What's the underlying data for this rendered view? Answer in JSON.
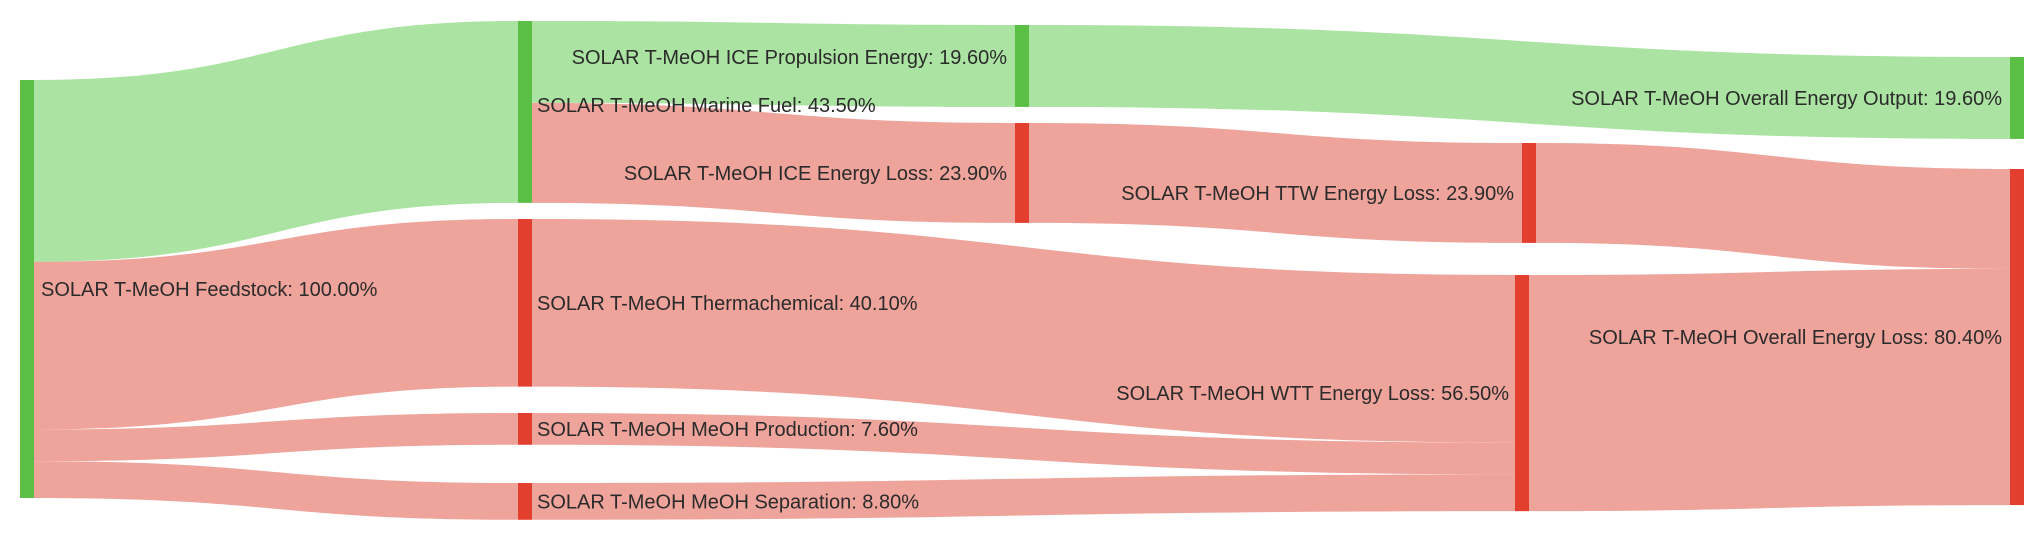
{
  "chart_data": {
    "type": "sankey",
    "unit": "%",
    "colors": {
      "output_node": "#5bbf45",
      "loss_node": "#e23f2f",
      "output_link": "#abe3a2",
      "loss_link": "#eea39b"
    },
    "nodes": [
      {
        "id": "feedstock",
        "label": "SOLAR T-MeOH Feedstock: 100.00%",
        "value": 100.0,
        "kind": "output"
      },
      {
        "id": "marine_fuel",
        "label": "SOLAR T-MeOH Marine Fuel: 43.50%",
        "value": 43.5,
        "kind": "output"
      },
      {
        "id": "thermochemical",
        "label": "SOLAR T-MeOH Thermachemical: 40.10%",
        "value": 40.1,
        "kind": "loss"
      },
      {
        "id": "meoh_production",
        "label": "SOLAR T-MeOH MeOH Production: 7.60%",
        "value": 7.6,
        "kind": "loss"
      },
      {
        "id": "meoh_separation",
        "label": "SOLAR T-MeOH MeOH Separation: 8.80%",
        "value": 8.8,
        "kind": "loss"
      },
      {
        "id": "ice_propulsion",
        "label": "SOLAR T-MeOH ICE Propulsion Energy: 19.60%",
        "value": 19.6,
        "kind": "output"
      },
      {
        "id": "ice_loss",
        "label": "SOLAR T-MeOH ICE Energy Loss: 23.90%",
        "value": 23.9,
        "kind": "loss"
      },
      {
        "id": "ttw_loss",
        "label": "SOLAR T-MeOH TTW Energy Loss: 23.90%",
        "value": 23.9,
        "kind": "loss"
      },
      {
        "id": "wtt_loss",
        "label": "SOLAR T-MeOH WTT Energy Loss: 56.50%",
        "value": 56.5,
        "kind": "loss"
      },
      {
        "id": "overall_output",
        "label": "SOLAR T-MeOH Overall Energy Output: 19.60%",
        "value": 19.6,
        "kind": "output"
      },
      {
        "id": "overall_loss",
        "label": "SOLAR T-MeOH Overall Energy Loss: 80.40%",
        "value": 80.4,
        "kind": "loss"
      }
    ],
    "links": [
      {
        "source": "feedstock",
        "target": "marine_fuel",
        "value": 43.5,
        "kind": "output"
      },
      {
        "source": "feedstock",
        "target": "thermochemical",
        "value": 40.1,
        "kind": "loss"
      },
      {
        "source": "feedstock",
        "target": "meoh_production",
        "value": 7.6,
        "kind": "loss"
      },
      {
        "source": "feedstock",
        "target": "meoh_separation",
        "value": 8.8,
        "kind": "loss"
      },
      {
        "source": "marine_fuel",
        "target": "ice_propulsion",
        "value": 19.6,
        "kind": "output"
      },
      {
        "source": "marine_fuel",
        "target": "ice_loss",
        "value": 23.9,
        "kind": "loss"
      },
      {
        "source": "ice_propulsion",
        "target": "overall_output",
        "value": 19.6,
        "kind": "output"
      },
      {
        "source": "ice_loss",
        "target": "ttw_loss",
        "value": 23.9,
        "kind": "loss"
      },
      {
        "source": "thermochemical",
        "target": "wtt_loss",
        "value": 40.1,
        "kind": "loss"
      },
      {
        "source": "meoh_production",
        "target": "wtt_loss",
        "value": 7.6,
        "kind": "loss"
      },
      {
        "source": "meoh_separation",
        "target": "wtt_loss",
        "value": 8.8,
        "kind": "loss"
      },
      {
        "source": "ttw_loss",
        "target": "overall_loss",
        "value": 23.9,
        "kind": "loss"
      },
      {
        "source": "wtt_loss",
        "target": "overall_loss",
        "value": 56.5,
        "kind": "loss"
      }
    ]
  }
}
